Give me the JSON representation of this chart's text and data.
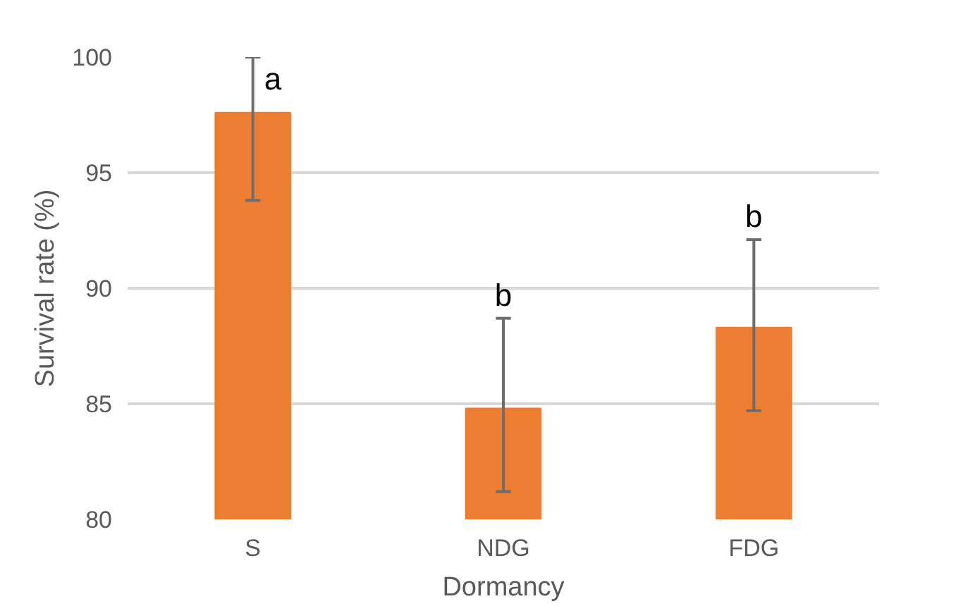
{
  "chart_data": {
    "type": "bar",
    "xlabel": "Dormancy",
    "ylabel": "Survival rate (%)",
    "categories": [
      "S",
      "NDG",
      "FDG"
    ],
    "series": [
      {
        "color": "#ed7d31",
        "values": [
          97.6,
          84.8,
          88.3
        ],
        "errors": [
          [
            93.8,
            100
          ],
          [
            81.2,
            88.7
          ],
          [
            84.7,
            92.1
          ]
        ]
      }
    ],
    "ylim": [
      80,
      100
    ],
    "yticks": [
      80,
      85,
      90,
      95,
      100
    ],
    "grid": "y",
    "annotations": [
      {
        "text": "a",
        "x": "S",
        "y": 100
      },
      {
        "text": "b",
        "x": "NDG",
        "y": 88.7
      },
      {
        "text": "b",
        "x": "FDG",
        "y": 92.1
      }
    ]
  }
}
